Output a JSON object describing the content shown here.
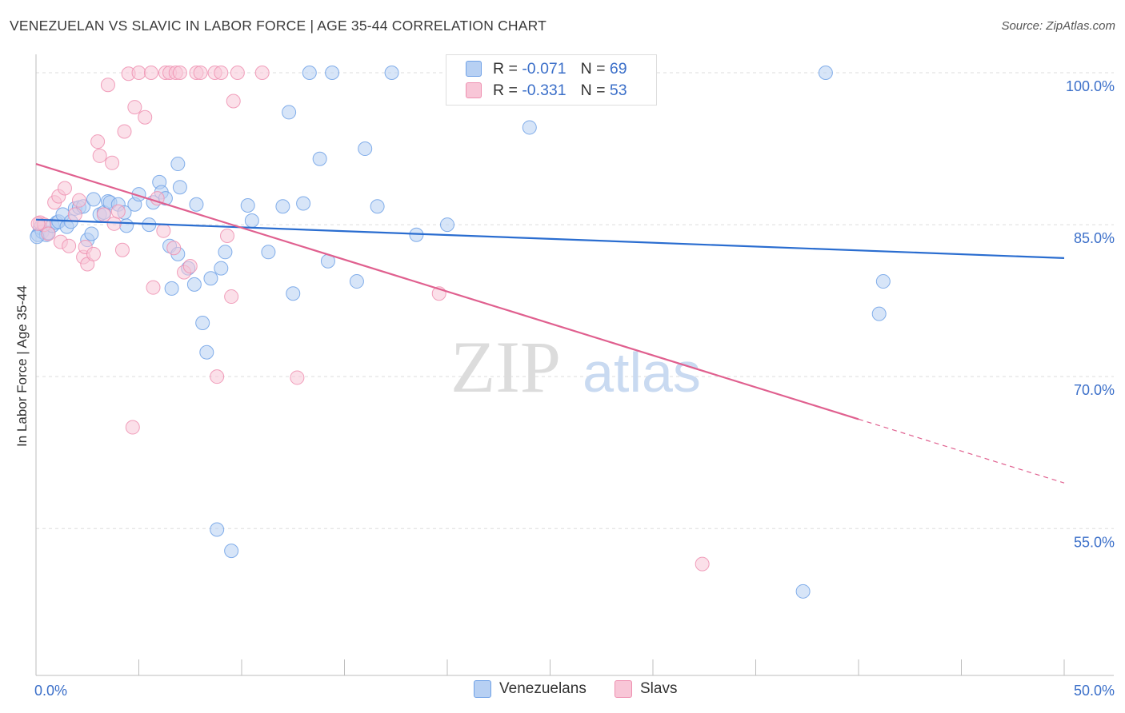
{
  "title": "VENEZUELAN VS SLAVIC IN LABOR FORCE | AGE 35-44 CORRELATION CHART",
  "source": "Source: ZipAtlas.com",
  "watermark": {
    "zip": "ZIP",
    "atlas": "atlas"
  },
  "legend": {
    "rows": [
      {
        "r_label": "R =",
        "r_value": "-0.071",
        "n_label": "N =",
        "n_value": "69"
      },
      {
        "r_label": "R =",
        "r_value": "-0.331",
        "n_label": "N =",
        "n_value": "53"
      }
    ]
  },
  "chart_data": {
    "type": "scatter",
    "title": "VENEZUELAN VS SLAVIC IN LABOR FORCE | AGE 35-44 CORRELATION CHART",
    "xlabel": "",
    "ylabel": "In Labor Force | Age 35-44",
    "xlim": [
      0,
      50
    ],
    "ylim": [
      40.5,
      101.5
    ],
    "x_tick_labels": [
      "0.0%",
      "50.0%"
    ],
    "y_ticks": [
      {
        "value": 100,
        "label": "100.0%"
      },
      {
        "value": 85,
        "label": "85.0%"
      },
      {
        "value": 70,
        "label": "70.0%"
      },
      {
        "value": 55,
        "label": "55.0%"
      }
    ],
    "series": [
      {
        "name": "Venezuelans",
        "color": "#6fa1e6",
        "fill": "#b7d0f3",
        "line_color": "#2a6dd0",
        "r": "-0.071",
        "n": "69",
        "trend": {
          "x0": 0,
          "y0": 85.5,
          "x1": 50,
          "y1": 81.7,
          "solid_until": 50
        },
        "points": [
          [
            0.1,
            84.0
          ],
          [
            0.2,
            84.7
          ],
          [
            0.3,
            84.3
          ],
          [
            0.5,
            84.0
          ],
          [
            0.6,
            84.2
          ],
          [
            0.8,
            84.9
          ],
          [
            1.0,
            85.2
          ],
          [
            1.1,
            85.3
          ],
          [
            1.3,
            86.0
          ],
          [
            1.5,
            84.8
          ],
          [
            1.7,
            85.3
          ],
          [
            1.9,
            86.6
          ],
          [
            2.1,
            86.7
          ],
          [
            2.3,
            86.8
          ],
          [
            2.5,
            83.5
          ],
          [
            2.7,
            84.1
          ],
          [
            2.8,
            87.5
          ],
          [
            3.1,
            86.0
          ],
          [
            3.3,
            86.2
          ],
          [
            3.5,
            87.3
          ],
          [
            3.6,
            87.2
          ],
          [
            4.0,
            87.0
          ],
          [
            4.3,
            86.2
          ],
          [
            4.4,
            84.9
          ],
          [
            4.8,
            87.0
          ],
          [
            5.0,
            88.0
          ],
          [
            5.5,
            85.0
          ],
          [
            5.7,
            87.2
          ],
          [
            6.0,
            89.2
          ],
          [
            6.1,
            88.2
          ],
          [
            6.3,
            87.6
          ],
          [
            6.5,
            82.9
          ],
          [
            6.6,
            78.7
          ],
          [
            6.9,
            82.1
          ],
          [
            6.9,
            91.0
          ],
          [
            7.0,
            88.7
          ],
          [
            7.4,
            80.7
          ],
          [
            7.7,
            79.1
          ],
          [
            7.8,
            87.0
          ],
          [
            8.1,
            75.3
          ],
          [
            8.3,
            72.4
          ],
          [
            8.5,
            79.7
          ],
          [
            8.8,
            54.9
          ],
          [
            9.0,
            80.7
          ],
          [
            9.2,
            82.3
          ],
          [
            9.5,
            52.8
          ],
          [
            10.3,
            86.9
          ],
          [
            10.5,
            85.4
          ],
          [
            11.3,
            82.3
          ],
          [
            12.0,
            86.8
          ],
          [
            12.3,
            96.1
          ],
          [
            12.5,
            78.2
          ],
          [
            13.0,
            87.1
          ],
          [
            13.3,
            100.0
          ],
          [
            13.8,
            91.5
          ],
          [
            14.2,
            81.4
          ],
          [
            14.4,
            100.0
          ],
          [
            15.6,
            79.4
          ],
          [
            16.0,
            92.5
          ],
          [
            16.6,
            86.8
          ],
          [
            17.3,
            100.0
          ],
          [
            18.5,
            84.0
          ],
          [
            20.0,
            85.0
          ],
          [
            24.0,
            94.6
          ],
          [
            37.3,
            48.8
          ],
          [
            38.4,
            100.0
          ],
          [
            41.0,
            76.2
          ],
          [
            41.2,
            79.4
          ],
          [
            0.05,
            83.8
          ]
        ]
      },
      {
        "name": "Slavs",
        "color": "#ee8fb0",
        "fill": "#f8c6d7",
        "line_color": "#e0608f",
        "r": "-0.331",
        "n": "53",
        "trend": {
          "x0": 0,
          "y0": 91.0,
          "x1": 50,
          "y1": 59.5,
          "solid_until": 40
        },
        "points": [
          [
            0.2,
            85.2
          ],
          [
            0.4,
            85.0
          ],
          [
            0.6,
            84.1
          ],
          [
            0.9,
            87.2
          ],
          [
            1.1,
            87.8
          ],
          [
            1.2,
            83.3
          ],
          [
            1.4,
            88.6
          ],
          [
            1.6,
            82.9
          ],
          [
            1.9,
            86.0
          ],
          [
            2.1,
            87.4
          ],
          [
            2.3,
            81.8
          ],
          [
            2.4,
            82.8
          ],
          [
            2.5,
            81.1
          ],
          [
            2.8,
            82.1
          ],
          [
            3.0,
            93.2
          ],
          [
            3.1,
            91.8
          ],
          [
            3.3,
            86.0
          ],
          [
            3.5,
            98.8
          ],
          [
            3.7,
            91.1
          ],
          [
            3.8,
            85.1
          ],
          [
            4.0,
            86.3
          ],
          [
            4.2,
            82.5
          ],
          [
            4.3,
            94.2
          ],
          [
            4.5,
            99.9
          ],
          [
            4.7,
            65.0
          ],
          [
            4.8,
            96.6
          ],
          [
            5.0,
            100.0
          ],
          [
            5.3,
            95.6
          ],
          [
            5.6,
            100.0
          ],
          [
            5.7,
            78.8
          ],
          [
            5.9,
            87.6
          ],
          [
            6.2,
            84.4
          ],
          [
            6.3,
            100.0
          ],
          [
            6.5,
            100.0
          ],
          [
            6.7,
            82.7
          ],
          [
            6.8,
            100.0
          ],
          [
            7.0,
            100.0
          ],
          [
            7.2,
            80.3
          ],
          [
            7.5,
            80.9
          ],
          [
            7.8,
            100.0
          ],
          [
            8.0,
            100.0
          ],
          [
            8.7,
            100.0
          ],
          [
            8.8,
            70.0
          ],
          [
            9.0,
            100.0
          ],
          [
            9.3,
            83.9
          ],
          [
            9.5,
            77.9
          ],
          [
            9.6,
            97.2
          ],
          [
            9.8,
            100.0
          ],
          [
            11.0,
            100.0
          ],
          [
            12.7,
            69.9
          ],
          [
            19.6,
            78.2
          ],
          [
            32.4,
            51.5
          ],
          [
            0.1,
            85.1
          ]
        ]
      }
    ]
  },
  "bottom_legend": [
    "Venezuelans",
    "Slavs"
  ]
}
